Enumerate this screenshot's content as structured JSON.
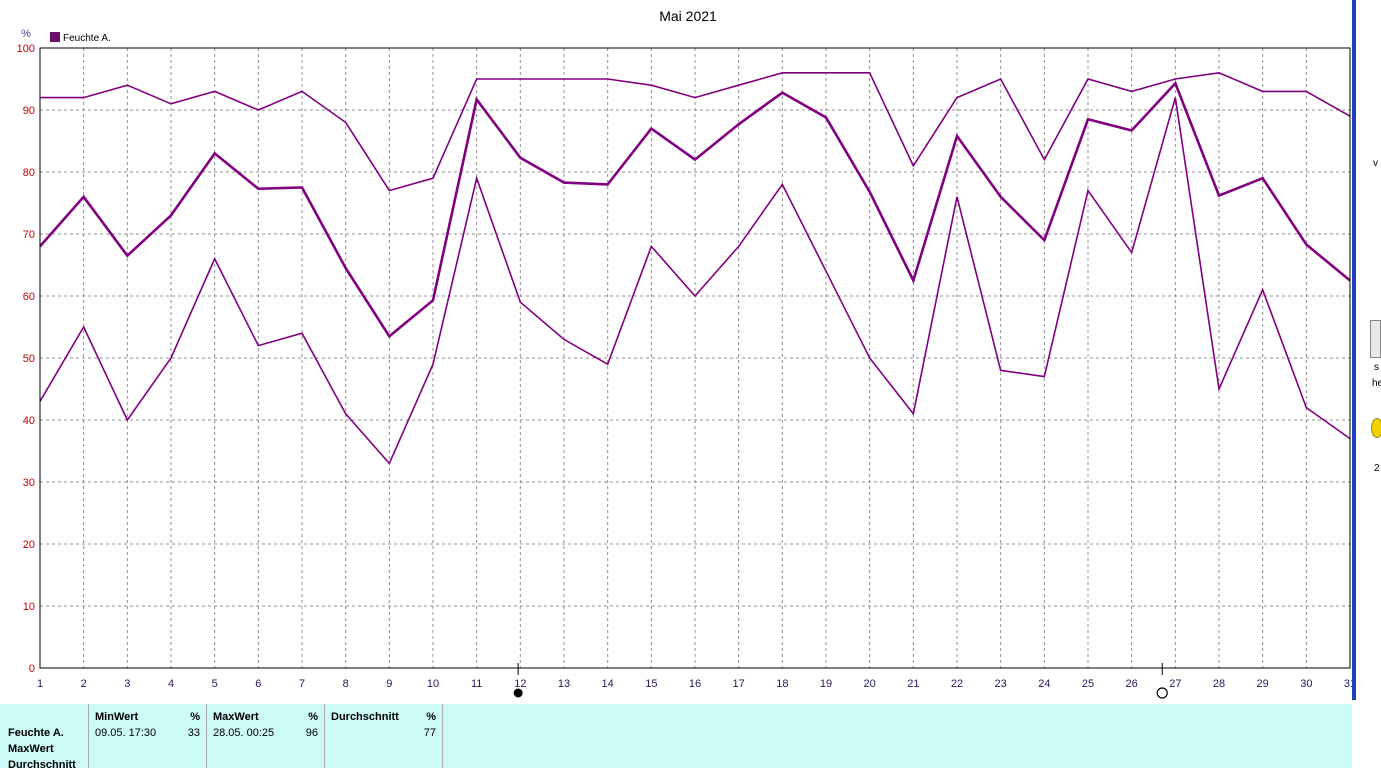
{
  "chart_data": {
    "type": "line",
    "title": "Mai 2021",
    "ylabel": "%",
    "xlabel": "",
    "x": [
      1,
      2,
      3,
      4,
      5,
      6,
      7,
      8,
      9,
      10,
      11,
      12,
      13,
      14,
      15,
      16,
      17,
      18,
      19,
      20,
      21,
      22,
      23,
      24,
      25,
      26,
      27,
      28,
      29,
      30,
      31
    ],
    "x_tick_labels": [
      "1",
      "2",
      "3",
      "4",
      "5",
      "6",
      "7",
      "8",
      "9",
      "10",
      "11",
      "12",
      "13",
      "14",
      "15",
      "16",
      "17",
      "18",
      "19",
      "20",
      "21",
      "22",
      "23",
      "24",
      "25",
      "26",
      "27",
      "28",
      "29",
      "30",
      "31"
    ],
    "ylim": [
      0,
      100
    ],
    "xlim": [
      1,
      31
    ],
    "y_ticks": [
      0,
      10,
      20,
      30,
      40,
      50,
      60,
      70,
      80,
      90,
      100
    ],
    "y_tick_labels": [
      "0",
      "10",
      "20",
      "30",
      "40",
      "50",
      "60",
      "70",
      "80",
      "90",
      "100"
    ],
    "grid": true,
    "legend": {
      "position": "top-left",
      "entries": [
        "Feuchte A."
      ]
    },
    "series": [
      {
        "role": "max",
        "values": [
          92,
          92,
          94,
          91,
          93,
          90,
          93,
          88,
          77,
          79,
          95,
          95,
          95,
          95,
          94,
          92,
          94,
          96,
          96,
          96,
          81,
          92,
          95,
          82,
          95,
          93,
          95,
          96,
          93,
          93,
          89
        ]
      },
      {
        "role": "avg",
        "values": [
          68,
          76,
          66.5,
          73,
          83,
          77.3,
          77.5,
          64.5,
          53.5,
          59.3,
          91.7,
          82.3,
          78.3,
          78,
          87,
          82,
          87.7,
          92.8,
          88.8,
          76.8,
          62.5,
          85.8,
          76,
          69,
          88.5,
          86.7,
          94.3,
          76.2,
          79,
          68.3,
          62.5
        ]
      },
      {
        "role": "min",
        "values": [
          43,
          55,
          40,
          50,
          66,
          52,
          54,
          41,
          33,
          49,
          79,
          59,
          53,
          49,
          68,
          60,
          68,
          78,
          64,
          50,
          41,
          76,
          48,
          47,
          77,
          67,
          92,
          45,
          61,
          42,
          37
        ]
      }
    ],
    "colors": {
      "line": "#800080",
      "legend_box": "#6b0f6b",
      "y_tick_text": "#c00000",
      "grid": "#909090"
    },
    "markers": [
      {
        "icon": "full-moon-filled-icon",
        "x": 11.95
      },
      {
        "icon": "new-moon-outline-icon",
        "x": 26.7
      }
    ]
  },
  "stats": {
    "row_labels": [
      "Feuchte A.",
      "MaxWert",
      "Durchschnitt"
    ],
    "columns": [
      {
        "header": "MinWert",
        "unit": "%",
        "time": "09.05.  17:30",
        "value": "33"
      },
      {
        "header": "MaxWert",
        "unit": "%",
        "time": "28.05.  00:25",
        "value": "96"
      },
      {
        "header": "Durchschnitt",
        "unit": "%",
        "time": "",
        "value": "77"
      }
    ]
  },
  "side_strip": {
    "fragments": [
      "v",
      "s",
      "he",
      "2"
    ]
  }
}
